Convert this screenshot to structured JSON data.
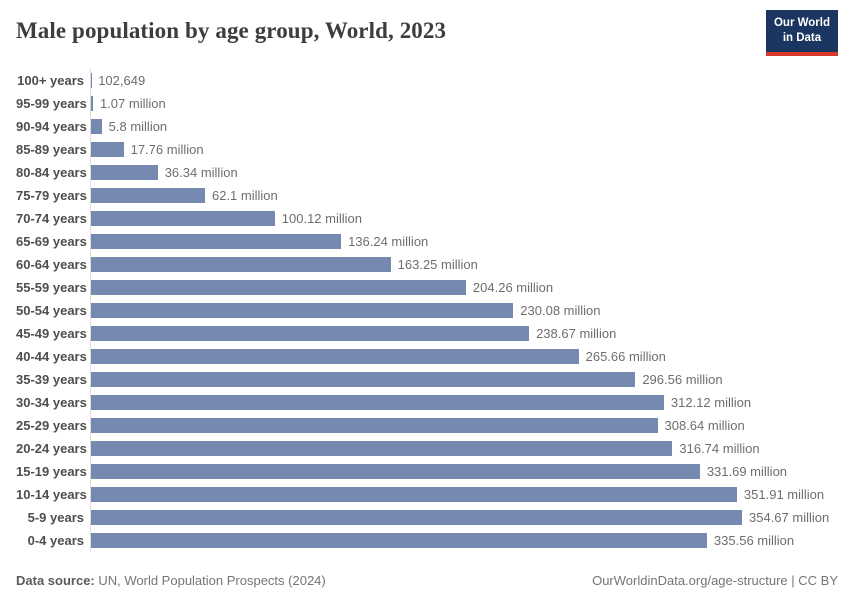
{
  "header": {
    "title": "Male population by age group, World, 2023",
    "logo": {
      "line1": "Our World",
      "line2": "in Data"
    }
  },
  "chart_data": {
    "type": "bar",
    "orientation": "horizontal",
    "title": "Male population by age group, World, 2023",
    "entity": "World",
    "year": "2023",
    "unit": "male population (millions of people)",
    "categories": [
      "100+ years",
      "95-99 years",
      "90-94 years",
      "85-89 years",
      "80-84 years",
      "75-79 years",
      "70-74 years",
      "65-69 years",
      "60-64 years",
      "55-59 years",
      "50-54 years",
      "45-49 years",
      "40-44 years",
      "35-39 years",
      "30-34 years",
      "25-29 years",
      "20-24 years",
      "15-19 years",
      "10-14 years",
      "5-9 years",
      "0-4 years"
    ],
    "values": [
      0.102649,
      1.07,
      5.8,
      17.76,
      36.34,
      62.1,
      100.12,
      136.24,
      163.25,
      204.26,
      230.08,
      238.67,
      265.66,
      296.56,
      312.12,
      308.64,
      316.74,
      331.69,
      351.91,
      354.67,
      335.56
    ],
    "value_labels": [
      "102,649",
      "1.07 million",
      "5.8 million",
      "17.76 million",
      "36.34 million",
      "62.1 million",
      "100.12 million",
      "136.24 million",
      "163.25 million",
      "204.26 million",
      "230.08 million",
      "238.67 million",
      "265.66 million",
      "296.56 million",
      "312.12 million",
      "308.64 million",
      "316.74 million",
      "331.69 million",
      "351.91 million",
      "354.67 million",
      "335.56 million"
    ],
    "xlim": [
      0,
      354.67
    ],
    "grid": false,
    "legend": "none",
    "colors": {
      "bar": "#7589b1",
      "axis_line": "#dcdcdc",
      "age_label": "#4e4e4e",
      "value_label": "#6e6e6e",
      "brand_navy": "#1a3560",
      "brand_red": "#d73a2d"
    }
  },
  "footer": {
    "source_prefix": "Data source:",
    "source_text": " UN, World Population Prospects (2024)",
    "credit": "OurWorldinData.org/age-structure | CC BY"
  }
}
